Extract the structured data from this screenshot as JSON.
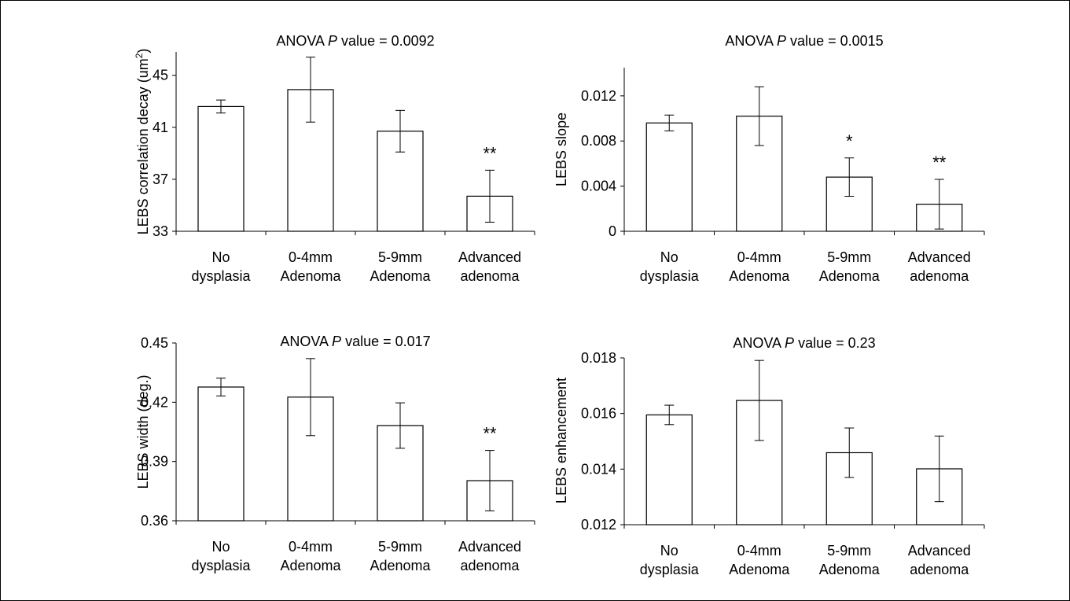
{
  "chart_data": [
    {
      "type": "bar",
      "title_prefix": "ANOVA ",
      "title_italic": "P",
      "title_suffix": " value = 0.0092",
      "ylabel": "LEBS correlation decay (um",
      "ylabel_sup": "2",
      "ylabel_close": ")",
      "categories": [
        [
          "No",
          "dysplasia"
        ],
        [
          "0-4mm",
          "Adenoma"
        ],
        [
          "5-9mm",
          "Adenoma"
        ],
        [
          "Advanced",
          "adenoma"
        ]
      ],
      "values": [
        42.6,
        43.9,
        40.7,
        35.7
      ],
      "errors": [
        0.5,
        2.5,
        1.6,
        2.0
      ],
      "significance": [
        "",
        "",
        "",
        "**"
      ],
      "ylim": [
        33,
        46.8
      ],
      "yticks": [
        33,
        37,
        41,
        45
      ],
      "ytick_labels": [
        "33",
        "37",
        "41",
        "45"
      ]
    },
    {
      "type": "bar",
      "title_prefix": "ANOVA ",
      "title_italic": "P",
      "title_suffix": "  value = 0.0015",
      "ylabel": "LEBS slope",
      "ylabel_sup": "",
      "ylabel_close": "",
      "categories": [
        [
          "No",
          "dysplasia"
        ],
        [
          "0-4mm",
          "Adenoma"
        ],
        [
          "5-9mm",
          "Adenoma"
        ],
        [
          "Advanced",
          "adenoma"
        ]
      ],
      "values": [
        0.0096,
        0.0102,
        0.0048,
        0.0024
      ],
      "errors": [
        0.0007,
        0.0026,
        0.0017,
        0.0022
      ],
      "significance": [
        "",
        "",
        "*",
        "**"
      ],
      "ylim": [
        0,
        0.0145
      ],
      "yticks": [
        0,
        0.004,
        0.008,
        0.012
      ],
      "ytick_labels": [
        "0",
        "0.004",
        "0.008",
        "0.012"
      ]
    },
    {
      "type": "bar",
      "title_prefix": "ANOVA ",
      "title_italic": "P",
      "title_suffix": " value = 0.017",
      "ylabel": "LEBS width (deg.)",
      "ylabel_sup": "",
      "ylabel_close": "",
      "categories": [
        [
          "No",
          "dysplasia"
        ],
        [
          "0-4mm",
          "Adenoma"
        ],
        [
          "5-9mm",
          "Adenoma"
        ],
        [
          "Advanced",
          "adenoma"
        ]
      ],
      "values": [
        0.4277,
        0.4226,
        0.4082,
        0.3803
      ],
      "errors": [
        0.0045,
        0.0195,
        0.0115,
        0.0153
      ],
      "significance": [
        "",
        "",
        "",
        "**"
      ],
      "ylim": [
        0.36,
        0.45
      ],
      "yticks": [
        0.36,
        0.39,
        0.42,
        0.45
      ],
      "ytick_labels": [
        "0.36",
        "0.39",
        "0.42",
        "0.45"
      ]
    },
    {
      "type": "bar",
      "title_prefix": "ANOVA ",
      "title_italic": "P",
      "title_suffix": " value = 0.23",
      "ylabel": "LEBS enhancement",
      "ylabel_sup": "",
      "ylabel_close": "",
      "categories": [
        [
          "No",
          "dysplasia"
        ],
        [
          "0-4mm",
          "Adenoma"
        ],
        [
          "5-9mm",
          "Adenoma"
        ],
        [
          "Advanced",
          "adenoma"
        ]
      ],
      "values": [
        0.01595,
        0.01647,
        0.01459,
        0.01401
      ],
      "errors": [
        0.00035,
        0.00144,
        0.00089,
        0.00118
      ],
      "significance": [
        "",
        "",
        "",
        ""
      ],
      "ylim": [
        0.012,
        0.018
      ],
      "yticks": [
        0.012,
        0.014,
        0.016,
        0.018
      ],
      "ytick_labels": [
        "0.012",
        "0.014",
        "0.016",
        "0.018"
      ]
    }
  ]
}
